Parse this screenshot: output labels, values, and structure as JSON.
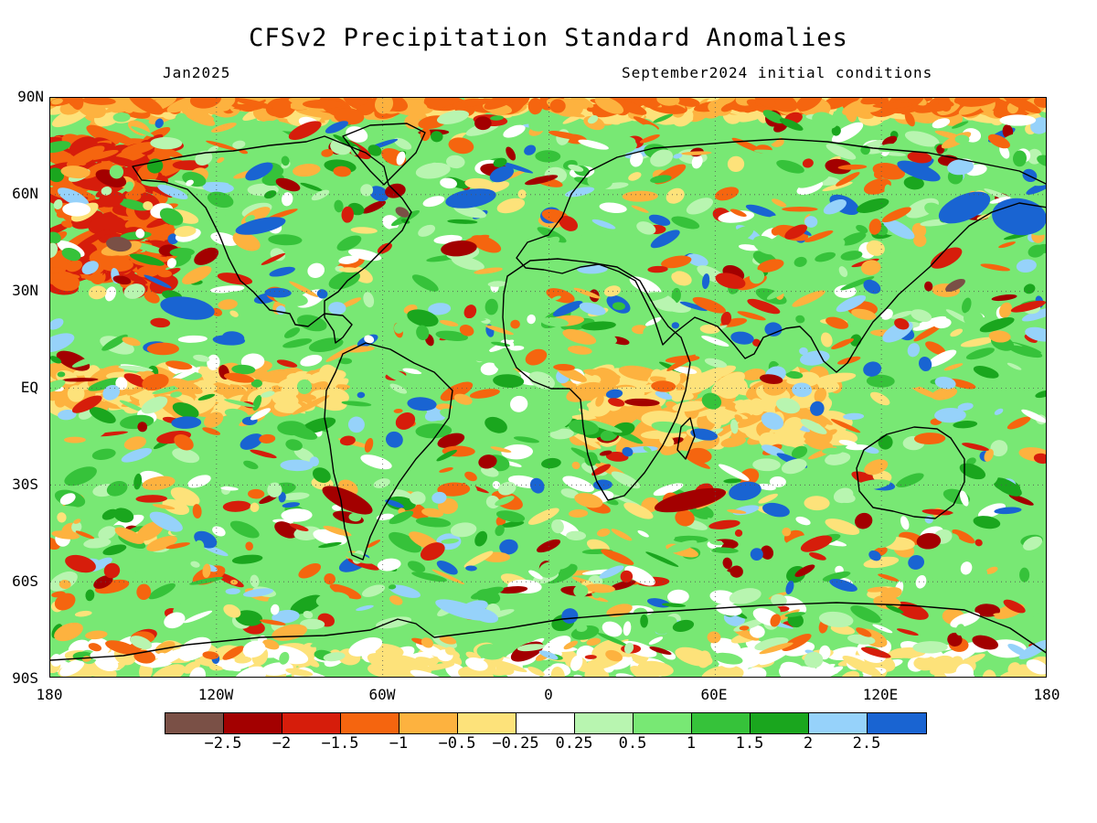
{
  "title": "CFSv2 Precipitation Standard Anomalies",
  "subtitle_left": "Jan2025",
  "subtitle_right": "September2024 initial conditions",
  "map": {
    "projection": "equirectangular",
    "lat_range": [
      -90,
      90
    ],
    "lon_range": [
      -180,
      180
    ],
    "lat_labels": [
      "90N",
      "60N",
      "30N",
      "EQ",
      "30S",
      "60S",
      "90S"
    ],
    "lon_labels": [
      "180",
      "120W",
      "60W",
      "0",
      "60E",
      "120E",
      "180"
    ],
    "coastline_color": "#000000",
    "grid": "dotted meridians/parallels every 60/30 degrees"
  },
  "colorbar": {
    "colors": [
      "#7a5046",
      "#a30000",
      "#d61d0b",
      "#f5650f",
      "#fdb23f",
      "#fde27a",
      "#ffffff",
      "#b8f5b0",
      "#78e874",
      "#36c23a",
      "#1aa61e",
      "#96d2fa",
      "#1964d2"
    ],
    "labels": [
      "−2.5",
      "−2",
      "−1.5",
      "−1",
      "−0.5",
      "−0.25",
      "0.25",
      "0.5",
      "1",
      "1.5",
      "2",
      "2.5"
    ]
  }
}
